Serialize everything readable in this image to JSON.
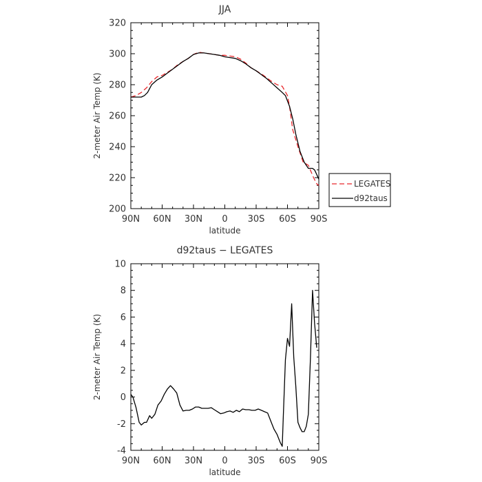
{
  "chart_data": [
    {
      "type": "line",
      "title": "JJA",
      "xlabel": "latitude",
      "ylabel": "2-meter Air Temp (K)",
      "xlim": [
        90,
        -90
      ],
      "ylim": [
        200,
        320
      ],
      "x_tick_labels": [
        "90N",
        "60N",
        "30N",
        "0",
        "30S",
        "60S",
        "90S"
      ],
      "x_tick_values": [
        90,
        60,
        30,
        0,
        -30,
        -60,
        -90
      ],
      "y_ticks": [
        200,
        220,
        240,
        260,
        280,
        300,
        320
      ],
      "legend_position": "right-bottom-outside",
      "series": [
        {
          "name": "LEGATES",
          "style": "dashed",
          "color": "#e8262a",
          "x": [
            90,
            85,
            80,
            75,
            70,
            65,
            60,
            55,
            50,
            45,
            40,
            35,
            30,
            25,
            20,
            15,
            10,
            5,
            0,
            -5,
            -10,
            -15,
            -20,
            -25,
            -30,
            -35,
            -40,
            -45,
            -50,
            -55,
            -60,
            -62,
            -65,
            -70,
            -75,
            -80,
            -85,
            -88,
            -90
          ],
          "y": [
            272,
            273,
            275,
            278,
            282,
            285,
            286,
            288,
            290,
            293,
            295,
            297,
            299.5,
            301,
            300.5,
            300,
            299.5,
            299,
            299,
            298.5,
            298,
            296.5,
            294,
            291,
            289,
            287,
            284.5,
            282,
            280,
            279,
            273,
            266,
            251,
            240,
            230,
            228,
            220,
            216,
            215
          ]
        },
        {
          "name": "d92taus",
          "style": "solid",
          "color": "#000000",
          "x": [
            90,
            85,
            80,
            77,
            74,
            70,
            65,
            60,
            55,
            50,
            45,
            40,
            35,
            30,
            25,
            20,
            15,
            10,
            5,
            0,
            -5,
            -10,
            -15,
            -20,
            -25,
            -30,
            -35,
            -40,
            -45,
            -50,
            -55,
            -58,
            -62,
            -65,
            -68,
            -72,
            -76,
            -80,
            -84,
            -86,
            -88,
            -90
          ],
          "y": [
            272,
            272,
            272,
            273,
            275,
            280,
            283,
            285,
            287.5,
            290,
            292.5,
            295,
            297,
            299.5,
            300.5,
            300.5,
            300,
            299.5,
            299,
            298,
            297.5,
            297,
            295.5,
            293.5,
            291,
            289,
            286.5,
            284,
            281,
            278,
            275,
            273,
            266,
            258,
            248,
            237,
            230,
            226,
            226,
            225,
            222,
            219
          ]
        }
      ]
    },
    {
      "type": "line",
      "title": "d92taus − LEGATES",
      "xlabel": "latitude",
      "ylabel": "2-meter Air Temp (K)",
      "xlim": [
        90,
        -90
      ],
      "ylim": [
        -4,
        10
      ],
      "x_tick_labels": [
        "90N",
        "60N",
        "30N",
        "0",
        "30S",
        "60S",
        "90S"
      ],
      "x_tick_values": [
        90,
        60,
        30,
        0,
        -30,
        -60,
        -90
      ],
      "y_ticks": [
        -4,
        -2,
        0,
        2,
        4,
        6,
        8,
        10
      ],
      "series": [
        {
          "name": "",
          "style": "solid",
          "color": "#000000",
          "x": [
            90,
            88,
            85,
            82,
            80,
            77,
            75,
            72,
            70,
            67,
            64,
            61,
            58,
            55,
            52,
            49,
            46,
            43,
            40,
            37,
            34,
            31,
            28,
            25,
            22,
            19,
            16,
            13,
            10,
            7,
            4,
            1,
            -2,
            -5,
            -8,
            -11,
            -14,
            -17,
            -20,
            -23,
            -26,
            -29,
            -32,
            -35,
            -38,
            -41,
            -44,
            -47,
            -50,
            -53,
            -55,
            -56,
            -58,
            -60,
            -62,
            -64,
            -66,
            -68,
            -70,
            -72,
            -74,
            -76,
            -78,
            -80,
            -82,
            -84,
            -86,
            -88
          ],
          "y": [
            0.2,
            0.0,
            -0.8,
            -1.9,
            -2.1,
            -1.9,
            -1.9,
            -1.4,
            -1.6,
            -1.3,
            -0.6,
            -0.3,
            0.2,
            0.6,
            0.85,
            0.6,
            0.3,
            -0.6,
            -1.05,
            -1.0,
            -1.0,
            -0.9,
            -0.75,
            -0.75,
            -0.85,
            -0.85,
            -0.85,
            -0.8,
            -0.95,
            -1.1,
            -1.25,
            -1.2,
            -1.1,
            -1.05,
            -1.15,
            -1.0,
            -1.1,
            -0.9,
            -0.95,
            -0.95,
            -1.0,
            -1.0,
            -0.9,
            -1.0,
            -1.1,
            -1.2,
            -1.8,
            -2.4,
            -2.8,
            -3.4,
            -3.7,
            -1.5,
            2.8,
            4.4,
            3.8,
            7.0,
            3.0,
            0.8,
            -1.9,
            -2.3,
            -2.6,
            -2.6,
            -2.2,
            -1.3,
            3.0,
            8.0,
            5.5,
            3.7
          ]
        }
      ]
    }
  ]
}
